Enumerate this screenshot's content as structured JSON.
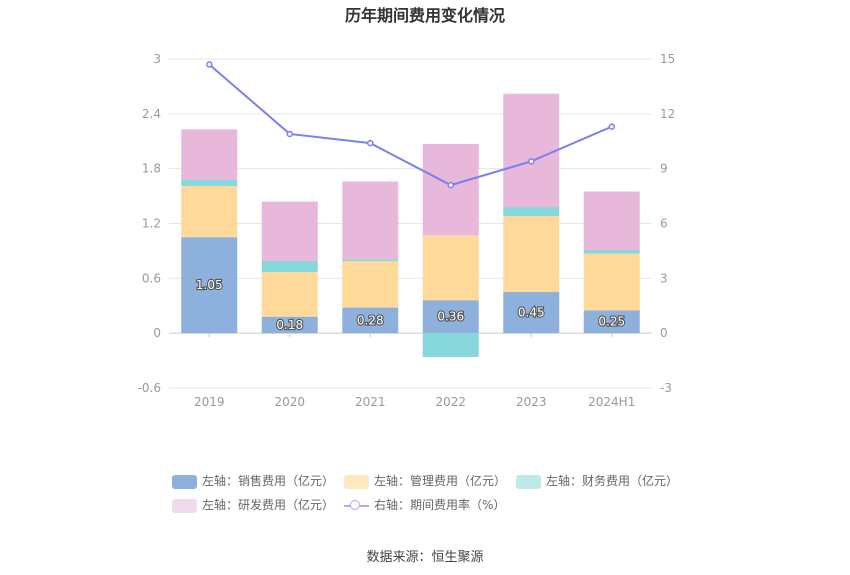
{
  "chart": {
    "title": "历年期间费用变化情况"
  },
  "chart_data": {
    "type": "bar",
    "categories": [
      "2019",
      "2020",
      "2021",
      "2022",
      "2023",
      "2024H1"
    ],
    "series": [
      {
        "name": "左轴：销售费用（亿元）",
        "type": "bar",
        "color": "#8eb0dc",
        "values": [
          1.05,
          0.18,
          0.28,
          0.36,
          0.45,
          0.25
        ],
        "show_labels": true
      },
      {
        "name": "左轴：管理费用（亿元）",
        "type": "bar",
        "color": "#ffd99a",
        "values": [
          0.56,
          0.49,
          0.51,
          0.71,
          0.83,
          0.62
        ],
        "show_labels": false
      },
      {
        "name": "左轴：财务费用（亿元）",
        "type": "bar",
        "color": "#87d8dc",
        "values": [
          0.07,
          0.12,
          0.02,
          -0.26,
          0.1,
          0.04
        ],
        "show_labels": false
      },
      {
        "name": "左轴：研发费用（亿元）",
        "type": "bar",
        "color": "#e8b8da",
        "values": [
          0.55,
          0.65,
          0.85,
          1.0,
          1.24,
          0.64
        ],
        "show_labels": false
      },
      {
        "name": "右轴：期间费用率（%）",
        "type": "line",
        "color": "#7b7ff0",
        "axis": "right",
        "values": [
          14.7,
          10.9,
          10.4,
          8.1,
          9.4,
          11.3
        ]
      }
    ],
    "y_left": {
      "min": -0.6,
      "max": 3,
      "ticks": [
        "-0.6",
        "0",
        "0.6",
        "1.2",
        "1.8",
        "2.4",
        "3"
      ]
    },
    "y_right": {
      "min": -3,
      "max": 15,
      "ticks": [
        "-3",
        "0",
        "3",
        "6",
        "9",
        "12",
        "15"
      ]
    },
    "grid": true,
    "legend_position": "bottom"
  },
  "source": "数据来源：恒生聚源"
}
